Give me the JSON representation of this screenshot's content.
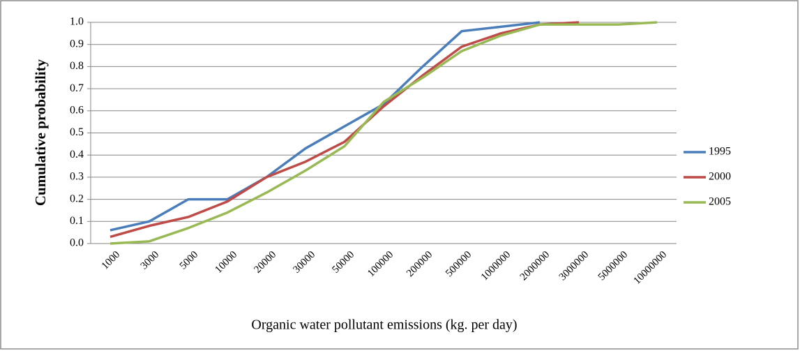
{
  "chart_data": {
    "type": "line",
    "x_label": "Organic water pollutant emissions (kg. per day)",
    "y_label": "Cumulative probability",
    "categories": [
      "1000",
      "3000",
      "5000",
      "10000",
      "20000",
      "30000",
      "50000",
      "100000",
      "200000",
      "500000",
      "1000000",
      "2000000",
      "3000000",
      "5000000",
      "10000000"
    ],
    "series": [
      {
        "name": "1995",
        "color": "#4a7ebb",
        "values": [
          0.06,
          0.1,
          0.2,
          0.2,
          0.3,
          0.43,
          0.53,
          0.63,
          0.8,
          0.96,
          0.98,
          1.0,
          null,
          null,
          null
        ]
      },
      {
        "name": "2000",
        "color": "#be4b48",
        "values": [
          0.03,
          0.08,
          0.12,
          0.19,
          0.3,
          0.37,
          0.46,
          0.62,
          0.76,
          0.89,
          0.95,
          0.99,
          1.0,
          null,
          null
        ]
      },
      {
        "name": "2005",
        "color": "#98b954",
        "values": [
          0.0,
          0.01,
          0.07,
          0.14,
          0.23,
          0.33,
          0.44,
          0.64,
          0.75,
          0.87,
          0.94,
          0.99,
          0.99,
          0.99,
          1.0
        ]
      }
    ],
    "ylim": [
      0,
      1
    ],
    "yticks": [
      {
        "value": 0,
        "label": "0.0"
      },
      0.1,
      0.2,
      0.3,
      0.4,
      0.5,
      0.6,
      0.7,
      0.8,
      0.9,
      {
        "value": 1,
        "label": "1.0"
      }
    ],
    "grid": true,
    "legend": "right"
  }
}
